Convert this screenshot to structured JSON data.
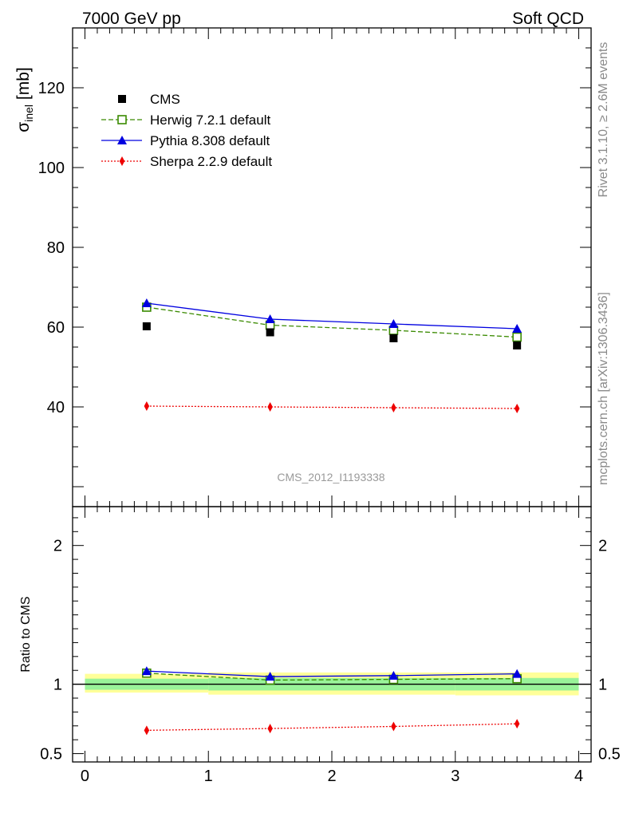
{
  "header": {
    "left": "7000 GeV pp",
    "right": "Soft QCD"
  },
  "side": {
    "rivet": "Rivet 3.1.10, ≥ 2.6M events",
    "mcplots": "mcplots.cern.ch [arXiv:1306.3436]"
  },
  "analysis_label": "CMS_2012_I1193338",
  "legend": [
    {
      "label": "CMS",
      "color": "#000000",
      "marker": "filled-square",
      "line": "none"
    },
    {
      "label": "Herwig 7.2.1 default",
      "color": "#3a8a00",
      "marker": "open-square",
      "line": "dashed"
    },
    {
      "label": "Pythia 8.308 default",
      "color": "#0000e0",
      "marker": "filled-triangle",
      "line": "solid"
    },
    {
      "label": "Sherpa 2.2.9 default",
      "color": "#ee0000",
      "marker": "filled-diamond",
      "line": "dotted"
    }
  ],
  "chart_data": [
    {
      "type": "scatter",
      "panel": "main",
      "ylabel": "σinel [mb]",
      "ylabel_main": "σ",
      "ylabel_sub": "inel",
      "ylabel_unit": " [mb]",
      "xlim": [
        -0.1,
        4.1
      ],
      "ylim": [
        15,
        135
      ],
      "yticks": [
        40,
        60,
        80,
        100,
        120
      ],
      "x": [
        0.5,
        1.5,
        2.5,
        3.5
      ],
      "series": [
        {
          "name": "CMS",
          "values": [
            60.2,
            58.7,
            57.2,
            55.4
          ]
        },
        {
          "name": "Herwig 7.2.1 default",
          "values": [
            65.0,
            60.5,
            59.2,
            57.5
          ]
        },
        {
          "name": "Pythia 8.308 default",
          "values": [
            66.0,
            62.0,
            60.8,
            59.6
          ]
        },
        {
          "name": "Sherpa 2.2.9 default",
          "values": [
            40.2,
            40.0,
            39.8,
            39.6
          ]
        }
      ]
    },
    {
      "type": "scatter",
      "panel": "ratio",
      "ylabel": "Ratio to CMS",
      "ylim": [
        0.44,
        2.28
      ],
      "yticks": [
        0.5,
        1,
        2
      ],
      "ytick_labels": [
        "0.5",
        "1",
        "2"
      ],
      "xticks": [
        0,
        1,
        2,
        3,
        4
      ],
      "xlim": [
        -0.1,
        4.1
      ],
      "x": [
        0.5,
        1.5,
        2.5,
        3.5
      ],
      "band_inner": [
        {
          "x0": 0,
          "x1": 1,
          "lo": 0.96,
          "hi": 1.04
        },
        {
          "x0": 1,
          "x1": 2,
          "lo": 0.955,
          "hi": 1.045
        },
        {
          "x0": 2,
          "x1": 3,
          "lo": 0.955,
          "hi": 1.045
        },
        {
          "x0": 3,
          "x1": 4,
          "lo": 0.955,
          "hi": 1.045
        }
      ],
      "band_outer": [
        {
          "x0": 0,
          "x1": 1,
          "lo": 0.94,
          "hi": 1.075
        },
        {
          "x0": 1,
          "x1": 2,
          "lo": 0.925,
          "hi": 1.085
        },
        {
          "x0": 2,
          "x1": 3,
          "lo": 0.925,
          "hi": 1.085
        },
        {
          "x0": 3,
          "x1": 4,
          "lo": 0.92,
          "hi": 1.085
        }
      ],
      "series": [
        {
          "name": "Herwig 7.2.1 default",
          "values": [
            1.08,
            1.03,
            1.035,
            1.04
          ]
        },
        {
          "name": "Pythia 8.308 default",
          "values": [
            1.095,
            1.055,
            1.062,
            1.075
          ]
        },
        {
          "name": "Sherpa 2.2.9 default",
          "values": [
            0.668,
            0.681,
            0.696,
            0.715
          ]
        }
      ]
    }
  ]
}
